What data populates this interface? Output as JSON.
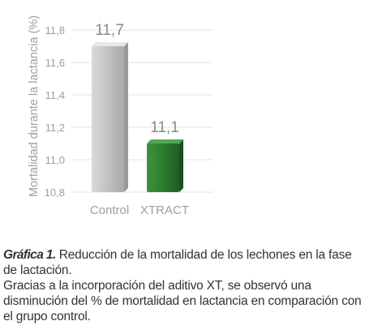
{
  "chart_data": {
    "type": "bar",
    "categories": [
      "Control",
      "XTRACT"
    ],
    "values": [
      11.7,
      11.1
    ],
    "value_labels": [
      "11,7",
      "11,1"
    ],
    "ylabel": "Mortalidad durante la lactancia (%)",
    "ylim": [
      10.8,
      11.8
    ],
    "yticks": [
      10.8,
      11.0,
      11.2,
      11.4,
      11.6,
      11.8
    ],
    "ytick_labels": [
      "10,8",
      "11,0",
      "11,2",
      "11,4",
      "11,6",
      "11,8"
    ],
    "bar_colors": [
      "#bdbdbd",
      "#2e7d32"
    ],
    "grid": true,
    "legend": "none"
  },
  "caption": {
    "lead": "Gráfica 1.",
    "title_text": " Reducción de la mortalidad de los lechones en la fase de lactación.",
    "body": "Gracias a la incorporación del aditivo XT, se observó una disminución del % de mortalidad en lactancia en comparación con el grupo control."
  }
}
